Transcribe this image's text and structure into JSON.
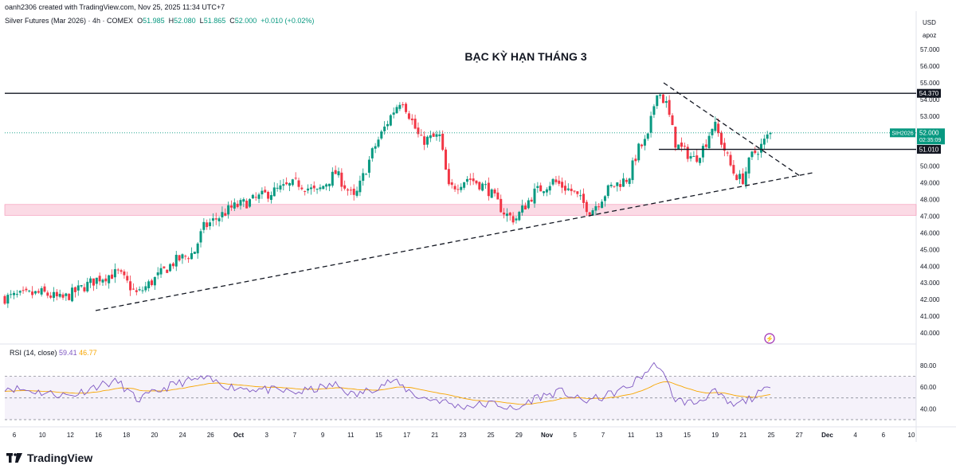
{
  "header": {
    "creator_line": "oanh2306 created with TradingView.com, Nov 25, 2025 11:34 UTC+7",
    "symbol": "Silver Futures (Mar 2026) · 4h · COMEX",
    "o_label": "O",
    "o_value": "51.985",
    "h_label": "H",
    "h_value": "52.080",
    "l_label": "L",
    "l_value": "51.865",
    "c_label": "C",
    "c_value": "52.000",
    "change": "+0.010 (+0.02%)"
  },
  "annotation_title": "BẠC KỲ HẠN THÁNG 3",
  "price_axis": {
    "currency": "USD",
    "unit": "apoz",
    "ticks": [
      "57.000",
      "56.000",
      "55.000",
      "54.000",
      "53.000",
      "52.000",
      "51.000",
      "50.000",
      "49.000",
      "48.000",
      "47.000",
      "46.000",
      "45.000",
      "44.000",
      "43.000",
      "42.000",
      "41.000",
      "40.000"
    ]
  },
  "price_labels": {
    "resistance": "54.370",
    "symbol_tag": "SIH2026",
    "last_price": "52.000",
    "countdown": "02:35:09",
    "support": "51.010"
  },
  "rsi": {
    "label": "RSI (14, close)",
    "rsi_value": "59.41",
    "ma_value": "46.77",
    "ticks": [
      "80.00",
      "60.00",
      "40.00"
    ]
  },
  "time_axis": [
    "6",
    "10",
    "12",
    "16",
    "18",
    "20",
    "24",
    "26",
    "Oct",
    "3",
    "7",
    "9",
    "11",
    "15",
    "17",
    "21",
    "23",
    "25",
    "29",
    "Nov",
    "5",
    "7",
    "11",
    "13",
    "15",
    "19",
    "21",
    "25",
    "27",
    "Dec",
    "4",
    "6",
    "10"
  ],
  "footer": {
    "brand": "TradingView"
  },
  "colors": {
    "up": "#089981",
    "down": "#f23645",
    "rsi_line": "#7e57c2",
    "rsi_ma": "#f7a600",
    "zone": "#f8bbd0",
    "last_price_tag": "#089981"
  },
  "chart_data": {
    "type": "candlestick",
    "timeframe": "4h",
    "y_range": [
      39.6,
      57.6
    ],
    "key_levels": {
      "resistance": 54.37,
      "support": 51.01,
      "zone_low": 47.05,
      "zone_high": 47.7
    },
    "close_path_approx": [
      {
        "t": "Sep 5",
        "v": 42.1
      },
      {
        "t": "Sep 9",
        "v": 42.4
      },
      {
        "t": "Sep 11",
        "v": 42.0
      },
      {
        "t": "Sep 15",
        "v": 43.3
      },
      {
        "t": "Sep 17",
        "v": 43.6
      },
      {
        "t": "Sep 19",
        "v": 42.3
      },
      {
        "t": "Sep 23",
        "v": 44.3
      },
      {
        "t": "Sep 25",
        "v": 44.8
      },
      {
        "t": "Sep 26",
        "v": 46.3
      },
      {
        "t": "Sep 29",
        "v": 47.5
      },
      {
        "t": "Oct 1",
        "v": 47.9
      },
      {
        "t": "Oct 3",
        "v": 48.4
      },
      {
        "t": "Oct 6",
        "v": 49.0
      },
      {
        "t": "Oct 8",
        "v": 48.4
      },
      {
        "t": "Oct 10",
        "v": 49.6
      },
      {
        "t": "Oct 12",
        "v": 48.0
      },
      {
        "t": "Oct 14",
        "v": 51.0
      },
      {
        "t": "Oct 16",
        "v": 53.2
      },
      {
        "t": "Oct 17",
        "v": 54.1
      },
      {
        "t": "Oct 19",
        "v": 51.5
      },
      {
        "t": "Oct 21",
        "v": 51.8
      },
      {
        "t": "Oct 22",
        "v": 48.6
      },
      {
        "t": "Oct 24",
        "v": 49.3
      },
      {
        "t": "Oct 26",
        "v": 48.7
      },
      {
        "t": "Oct 28",
        "v": 47.1
      },
      {
        "t": "Oct 29",
        "v": 46.8
      },
      {
        "t": "Oct 31",
        "v": 48.4
      },
      {
        "t": "Nov 2",
        "v": 49.1
      },
      {
        "t": "Nov 4",
        "v": 48.5
      },
      {
        "t": "Nov 6",
        "v": 47.3
      },
      {
        "t": "Nov 8",
        "v": 48.7
      },
      {
        "t": "Nov 10",
        "v": 49.3
      },
      {
        "t": "Nov 11",
        "v": 51.0
      },
      {
        "t": "Nov 12",
        "v": 51.6
      },
      {
        "t": "Nov 13",
        "v": 54.6
      },
      {
        "t": "Nov 14",
        "v": 53.7
      },
      {
        "t": "Nov 15",
        "v": 51.3
      },
      {
        "t": "Nov 17",
        "v": 50.4
      },
      {
        "t": "Nov 18",
        "v": 51.2
      },
      {
        "t": "Nov 19",
        "v": 52.6
      },
      {
        "t": "Nov 20",
        "v": 51.2
      },
      {
        "t": "Nov 21",
        "v": 49.7
      },
      {
        "t": "Nov 22",
        "v": 49.1
      },
      {
        "t": "Nov 23",
        "v": 50.6
      },
      {
        "t": "Nov 24",
        "v": 51.2
      },
      {
        "t": "Nov 25",
        "v": 52.0
      }
    ],
    "rsi_path_approx": [
      {
        "t": "Sep 5",
        "v": 60
      },
      {
        "t": "Sep 9",
        "v": 55
      },
      {
        "t": "Sep 12",
        "v": 52
      },
      {
        "t": "Sep 15",
        "v": 62
      },
      {
        "t": "Sep 17",
        "v": 65
      },
      {
        "t": "Sep 19",
        "v": 48
      },
      {
        "t": "Sep 23",
        "v": 63
      },
      {
        "t": "Sep 26",
        "v": 68
      },
      {
        "t": "Sep 29",
        "v": 60
      },
      {
        "t": "Oct 2",
        "v": 58
      },
      {
        "t": "Oct 6",
        "v": 55
      },
      {
        "t": "Oct 10",
        "v": 62
      },
      {
        "t": "Oct 12",
        "v": 52
      },
      {
        "t": "Oct 16",
        "v": 66
      },
      {
        "t": "Oct 19",
        "v": 50
      },
      {
        "t": "Oct 21",
        "v": 48
      },
      {
        "t": "Oct 23",
        "v": 42
      },
      {
        "t": "Oct 27",
        "v": 45
      },
      {
        "t": "Oct 29",
        "v": 38
      },
      {
        "t": "Oct 31",
        "v": 50
      },
      {
        "t": "Nov 3",
        "v": 56
      },
      {
        "t": "Nov 5",
        "v": 47
      },
      {
        "t": "Nov 7",
        "v": 50
      },
      {
        "t": "Nov 10",
        "v": 60
      },
      {
        "t": "Nov 12",
        "v": 75
      },
      {
        "t": "Nov 13",
        "v": 82
      },
      {
        "t": "Nov 15",
        "v": 48
      },
      {
        "t": "Nov 17",
        "v": 45
      },
      {
        "t": "Nov 19",
        "v": 56
      },
      {
        "t": "Nov 21",
        "v": 42
      },
      {
        "t": "Nov 23",
        "v": 50
      },
      {
        "t": "Nov 25",
        "v": 59.41
      }
    ]
  }
}
